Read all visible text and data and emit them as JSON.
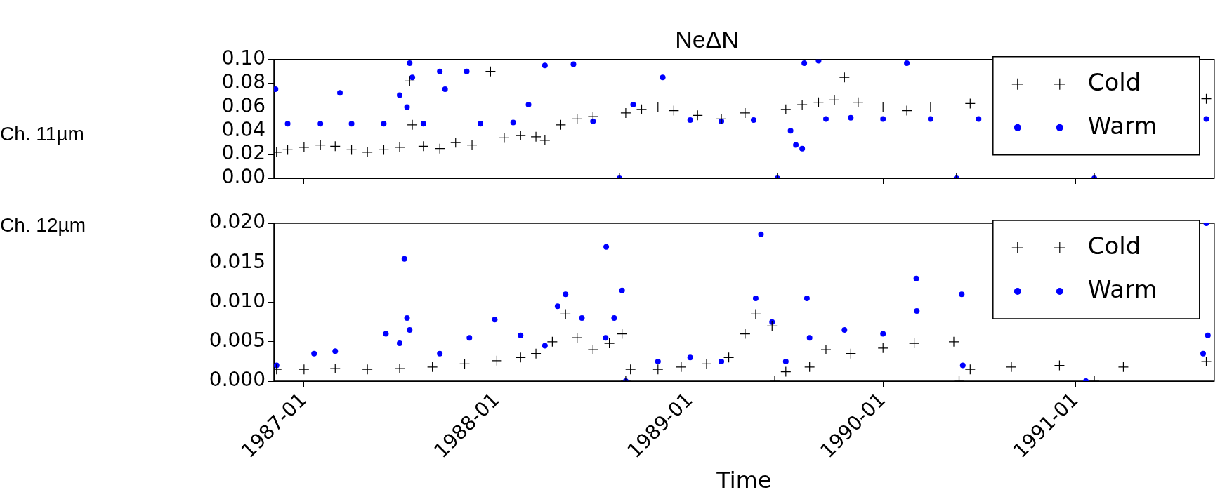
{
  "chart_data": [
    {
      "type": "scatter",
      "title": "NeΔN",
      "ylabel": "Ch. 11µm",
      "legend": "top right",
      "tick_labels": "y",
      "xlim": [
        "1986-11-05",
        "1991-09-20"
      ],
      "xticks": [
        "1987-01",
        "1988-01",
        "1989-01",
        "1990-01",
        "1991-01"
      ],
      "ylim": [
        0,
        0.1
      ],
      "yticks": [
        {
          "value": 0,
          "label": "0.00"
        },
        {
          "value": 0.02,
          "label": "0.02"
        },
        {
          "value": 0.04,
          "label": "0.04"
        },
        {
          "value": 0.06,
          "label": "0.06"
        },
        {
          "value": 0.08,
          "label": "0.08"
        },
        {
          "value": 0.1,
          "label": "0.10"
        }
      ],
      "series": [
        {
          "name": "Cold",
          "color": "#000000",
          "marker": "cross",
          "x": [
            "1986-11-10",
            "1986-12-01",
            "1987-01-01",
            "1987-02-01",
            "1987-03-01",
            "1987-04-01",
            "1987-05-01",
            "1987-06-01",
            "1987-07-01",
            "1987-07-20",
            "1987-07-25",
            "1987-08-15",
            "1987-09-15",
            "1987-10-15",
            "1987-11-15",
            "1987-12-20",
            "1988-01-15",
            "1988-02-15",
            "1988-03-15",
            "1988-04-01",
            "1988-05-01",
            "1988-06-01",
            "1988-07-01",
            "1988-08-20",
            "1988-09-01",
            "1988-10-01",
            "1988-11-01",
            "1988-12-01",
            "1989-01-15",
            "1989-03-01",
            "1989-04-15",
            "1989-06-15",
            "1989-07-01",
            "1989-08-01",
            "1989-09-01",
            "1989-10-01",
            "1989-10-20",
            "1989-11-15",
            "1990-01-01",
            "1990-02-15",
            "1990-04-01",
            "1990-05-20",
            "1990-06-15",
            "1991-02-05",
            "1991-09-05"
          ],
          "values": [
            0.022,
            0.024,
            0.026,
            0.028,
            0.027,
            0.024,
            0.022,
            0.024,
            0.026,
            0.082,
            0.045,
            0.027,
            0.025,
            0.03,
            0.028,
            0.09,
            0.034,
            0.036,
            0.035,
            0.032,
            0.045,
            0.05,
            0.052,
            0,
            0.055,
            0.058,
            0.06,
            0.057,
            0.053,
            0.05,
            0.055,
            0,
            0.058,
            0.062,
            0.064,
            0.066,
            0.085,
            0.064,
            0.06,
            0.057,
            0.06,
            0,
            0.063,
            0,
            0.067
          ]
        },
        {
          "name": "Warm",
          "color": "#0000ff",
          "marker": "circle",
          "x": [
            "1986-11-08",
            "1986-12-01",
            "1987-02-01",
            "1987-03-10",
            "1987-04-01",
            "1987-06-01",
            "1987-07-01",
            "1987-07-15",
            "1987-07-20",
            "1987-07-25",
            "1987-08-15",
            "1987-09-15",
            "1987-09-25",
            "1987-11-05",
            "1987-12-01",
            "1988-02-01",
            "1988-03-01",
            "1988-04-01",
            "1988-05-25",
            "1988-07-01",
            "1988-08-20",
            "1988-09-15",
            "1988-11-10",
            "1989-01-01",
            "1989-03-01",
            "1989-05-01",
            "1989-06-15",
            "1989-07-10",
            "1989-07-20",
            "1989-08-01",
            "1989-08-05",
            "1989-09-01",
            "1989-09-15",
            "1989-11-01",
            "1990-01-01",
            "1990-02-15",
            "1990-04-01",
            "1990-05-20",
            "1990-07-01",
            "1991-02-05",
            "1991-09-05"
          ],
          "values": [
            0.075,
            0.046,
            0.046,
            0.072,
            0.046,
            0.046,
            0.07,
            0.06,
            0.097,
            0.085,
            0.046,
            0.09,
            0.075,
            0.09,
            0.046,
            0.047,
            0.062,
            0.095,
            0.096,
            0.048,
            0,
            0.062,
            0.085,
            0.049,
            0.048,
            0.049,
            0,
            0.04,
            0.028,
            0.025,
            0.097,
            0.099,
            0.05,
            0.051,
            0.05,
            0.097,
            0.05,
            0,
            0.05,
            0,
            0.05
          ]
        }
      ]
    },
    {
      "type": "scatter",
      "ylabel": "Ch. 12µm",
      "xlabel": "Time",
      "legend": "top right",
      "xlim": [
        "1986-11-05",
        "1991-09-20"
      ],
      "xticks": [
        "1987-01",
        "1988-01",
        "1989-01",
        "1990-01",
        "1991-01"
      ],
      "ylim": [
        0,
        0.02
      ],
      "yticks": [
        {
          "value": 0,
          "label": "0.000"
        },
        {
          "value": 0.005,
          "label": "0.005"
        },
        {
          "value": 0.01,
          "label": "0.010"
        },
        {
          "value": 0.015,
          "label": "0.015"
        },
        {
          "value": 0.02,
          "label": "0.020"
        }
      ],
      "series": [
        {
          "name": "Cold",
          "color": "#000000",
          "marker": "cross",
          "x": [
            "1986-11-10",
            "1987-01-01",
            "1987-03-01",
            "1987-05-01",
            "1987-07-01",
            "1987-09-01",
            "1987-11-01",
            "1988-01-01",
            "1988-02-15",
            "1988-03-15",
            "1988-04-15",
            "1988-05-10",
            "1988-06-01",
            "1988-07-01",
            "1988-08-01",
            "1988-08-25",
            "1988-09-01",
            "1988-09-10",
            "1988-11-01",
            "1988-12-15",
            "1989-02-01",
            "1989-03-15",
            "1989-04-15",
            "1989-05-05",
            "1989-06-05",
            "1989-06-10",
            "1989-07-01",
            "1989-08-15",
            "1989-09-15",
            "1989-11-01",
            "1990-01-01",
            "1990-03-01",
            "1990-05-15",
            "1990-05-25",
            "1990-06-15",
            "1990-09-01",
            "1990-12-01",
            "1991-02-05",
            "1991-04-01",
            "1991-09-05"
          ],
          "values": [
            0.0015,
            0.0015,
            0.0016,
            0.0015,
            0.0016,
            0.0018,
            0.0022,
            0.0026,
            0.003,
            0.0035,
            0.005,
            0.0085,
            0.0055,
            0.004,
            0.0048,
            0.006,
            0,
            0.0015,
            0.0015,
            0.0018,
            0.0022,
            0.003,
            0.006,
            0.0085,
            0.007,
            0,
            0.0012,
            0.0018,
            0.004,
            0.0035,
            0.0042,
            0.0048,
            0.005,
            0,
            0.0015,
            0.0018,
            0.002,
            0,
            0.0018,
            0.0025
          ]
        },
        {
          "name": "Warm",
          "color": "#0000ff",
          "marker": "circle",
          "x": [
            "1986-11-10",
            "1987-01-20",
            "1987-03-01",
            "1987-06-05",
            "1987-07-01",
            "1987-07-10",
            "1987-07-15",
            "1987-07-20",
            "1987-09-15",
            "1987-11-10",
            "1987-12-28",
            "1988-02-15",
            "1988-04-01",
            "1988-04-25",
            "1988-05-10",
            "1988-06-10",
            "1988-07-25",
            "1988-07-26",
            "1988-08-10",
            "1988-08-25",
            "1988-09-01",
            "1988-11-01",
            "1989-01-01",
            "1989-03-01",
            "1989-05-05",
            "1989-05-15",
            "1989-06-05",
            "1989-07-01",
            "1989-08-10",
            "1989-08-15",
            "1989-10-20",
            "1990-01-01",
            "1990-03-05",
            "1990-03-06",
            "1990-05-30",
            "1990-06-01",
            "1991-01-20",
            "1991-08-30",
            "1991-09-05",
            "1991-09-08"
          ],
          "values": [
            0.002,
            0.0035,
            0.0038,
            0.006,
            0.0048,
            0.0155,
            0.008,
            0.0065,
            0.0035,
            0.0055,
            0.0078,
            0.0058,
            0.0045,
            0.0095,
            0.011,
            0.008,
            0.0055,
            0.017,
            0.008,
            0.0115,
            0,
            0.0025,
            0.003,
            0.0025,
            0.0105,
            0.0186,
            0.0075,
            0.0025,
            0.0105,
            0.0055,
            0.0065,
            0.006,
            0.013,
            0.0089,
            0.011,
            0.002,
            0,
            0.0035,
            0.02,
            0.0058
          ]
        }
      ]
    }
  ]
}
